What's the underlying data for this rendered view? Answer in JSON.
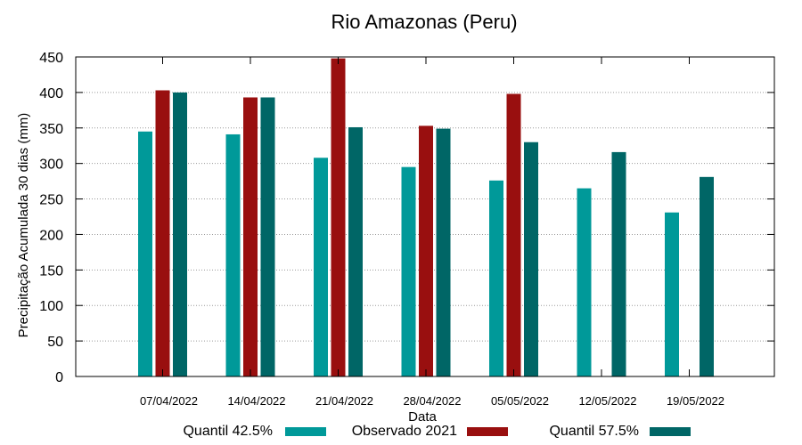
{
  "chart_data": {
    "type": "bar",
    "title": "Rio Amazonas (Peru)",
    "xlabel": "Data",
    "ylabel": "Precipitação Acumulada 30 dias (mm)",
    "ylim": [
      0,
      450
    ],
    "yticks": [
      "0",
      "50",
      "100",
      "150",
      "200",
      "250",
      "300",
      "350",
      "400",
      "450"
    ],
    "grid": true,
    "legend_position": "bottom",
    "categories": [
      "07/04/2022",
      "14/04/2022",
      "21/04/2022",
      "28/04/2022",
      "05/05/2022",
      "12/05/2022",
      "19/05/2022"
    ],
    "series": [
      {
        "name": "Quantil 42.5%",
        "color": "#009999",
        "values": [
          345,
          341,
          308,
          295,
          276,
          265,
          231
        ]
      },
      {
        "name": "Observado 2021",
        "color": "#990f0f",
        "values": [
          403,
          393,
          448,
          353,
          398,
          null,
          null
        ]
      },
      {
        "name": "Quantil 57.5%",
        "color": "#006666",
        "values": [
          400,
          393,
          351,
          349,
          330,
          316,
          281
        ]
      }
    ]
  }
}
